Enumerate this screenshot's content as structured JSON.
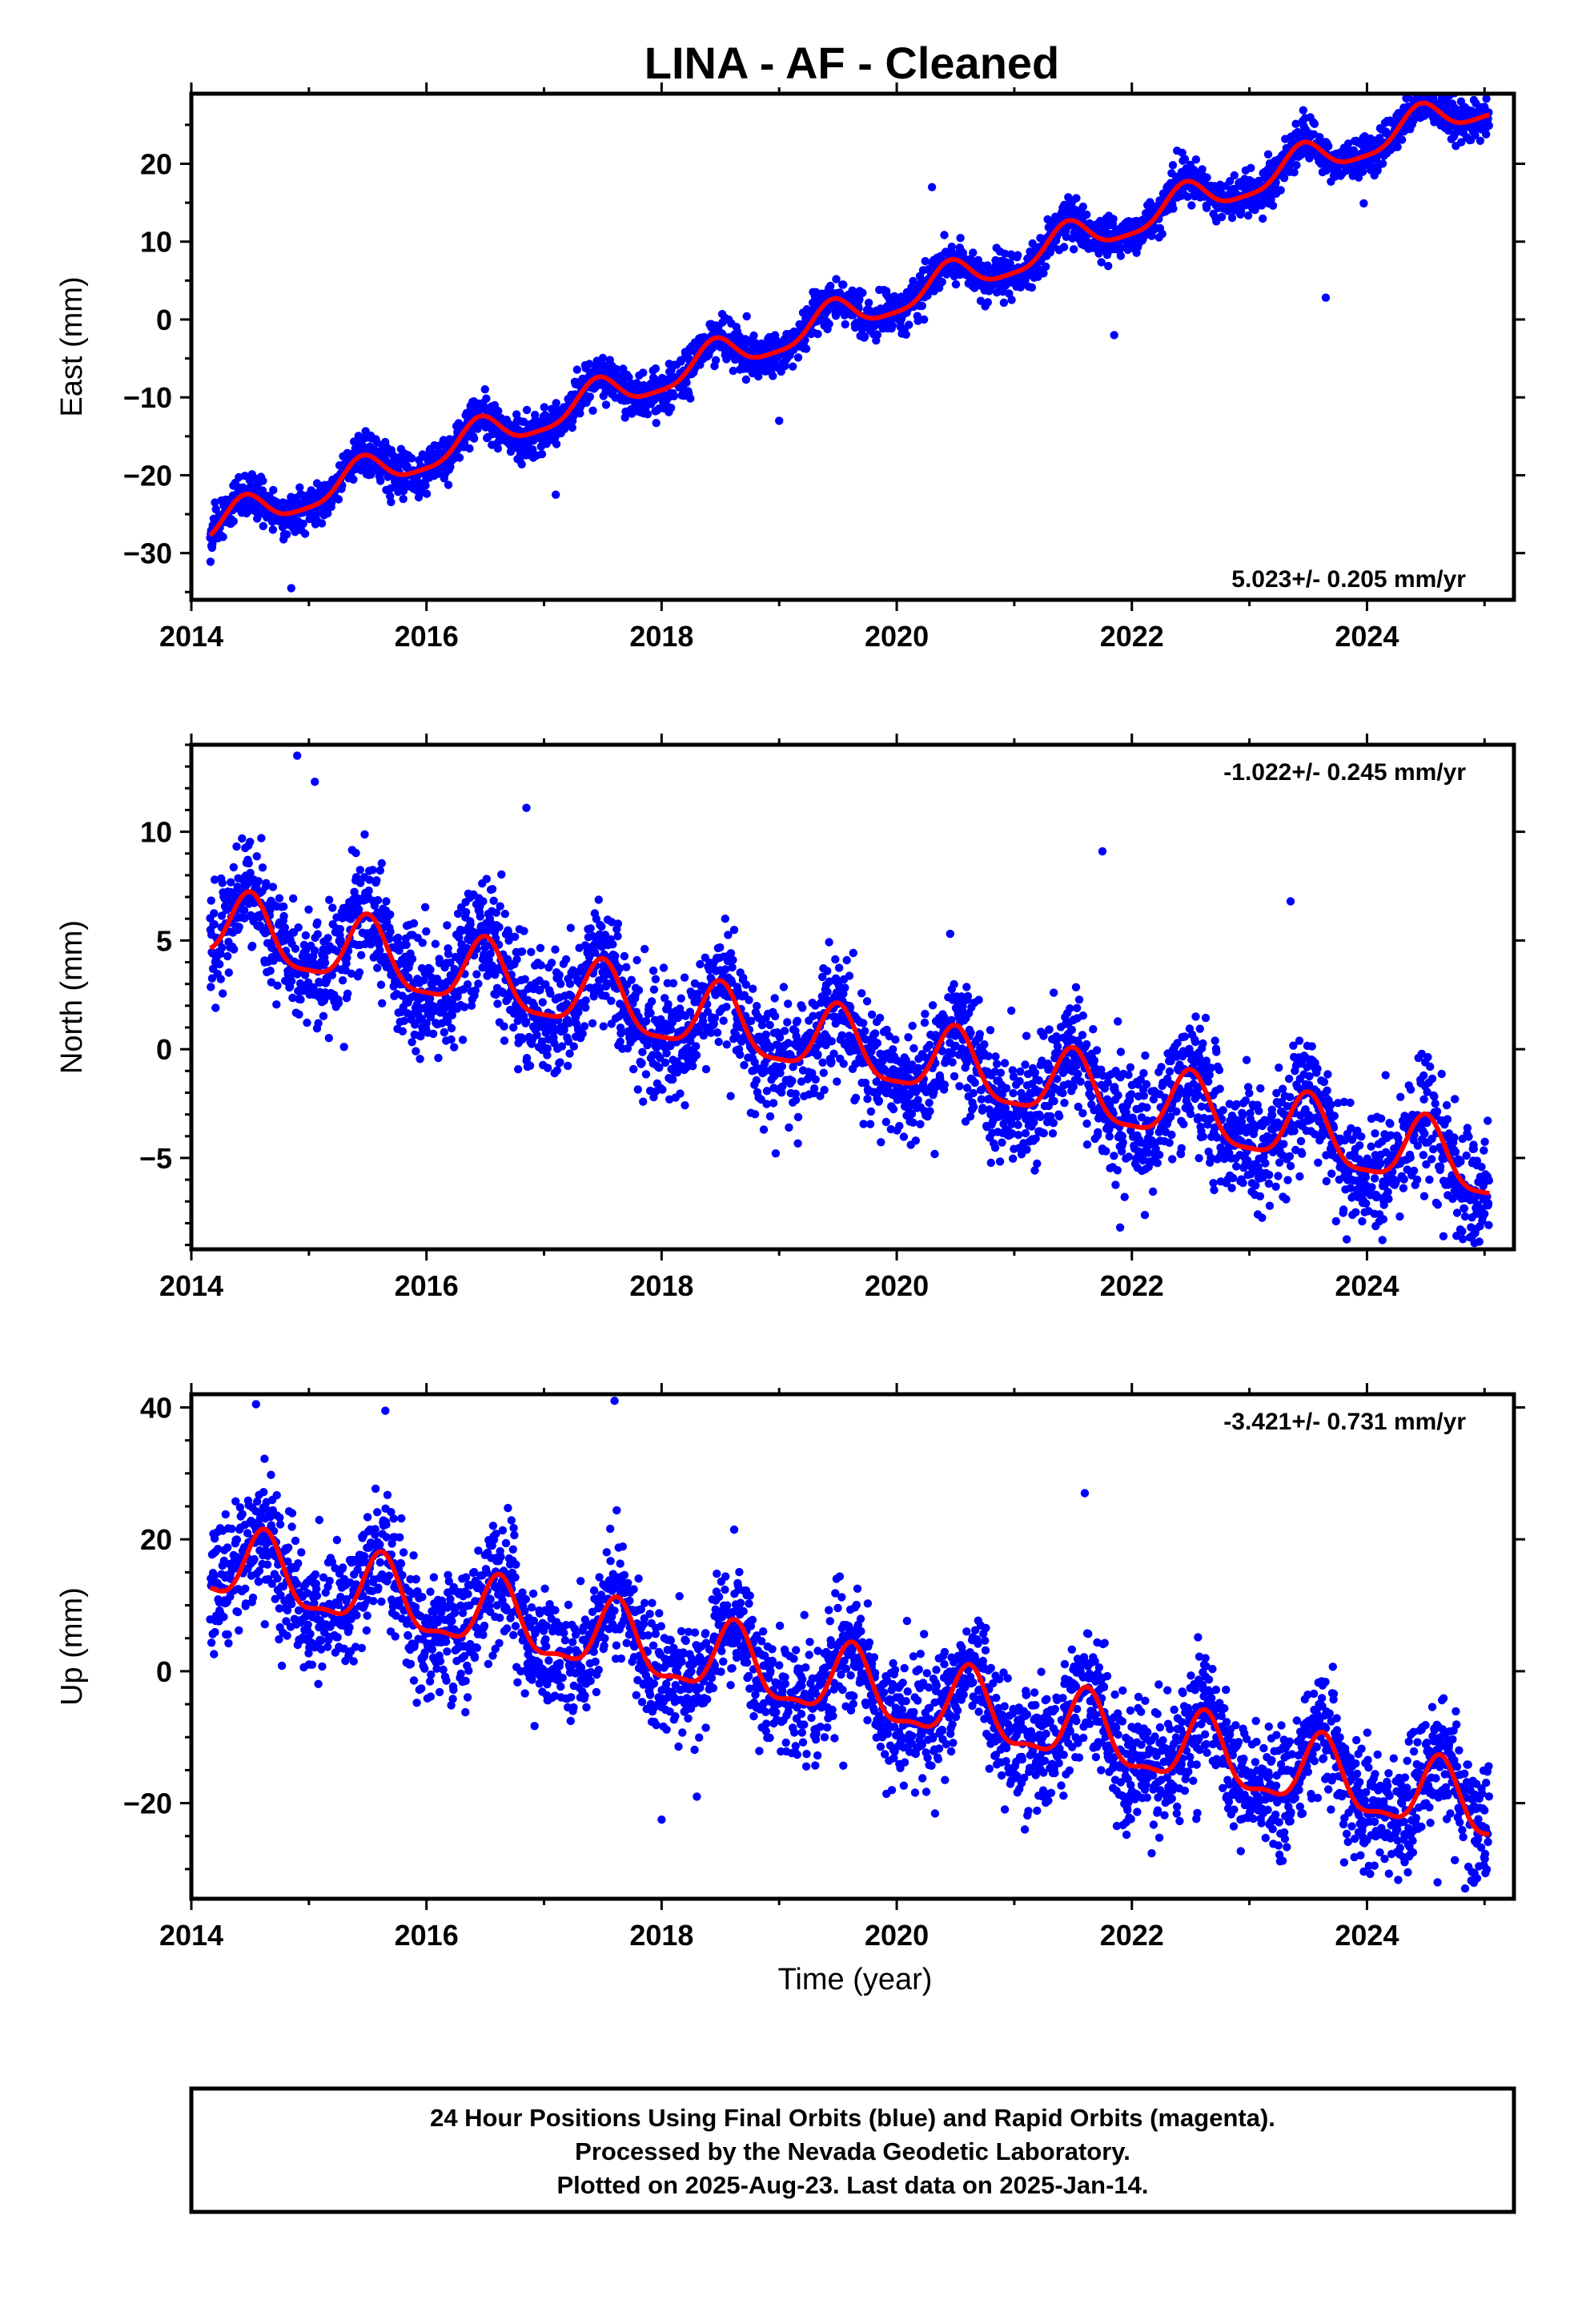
{
  "chart_data": {
    "title": "LINA  - AF - Cleaned",
    "type": "scatter",
    "x_tick_labels": [
      "2014",
      "2016",
      "2018",
      "2020",
      "2022",
      "2024"
    ],
    "xlabel": "Time (year)",
    "xlim": [
      2014,
      2025.25
    ],
    "panels": [
      {
        "key": "east",
        "ylabel": "East (mm)",
        "ylim": [
          -36,
          29
        ],
        "y_ticks": [
          -30,
          -20,
          -10,
          0,
          10,
          20
        ],
        "y_tick_labels": [
          "−30",
          "−20",
          "−10",
          "0",
          "10",
          "20"
        ],
        "rate_text": "5.023+/- 0.205 mm/yr",
        "rate_position": "bottom-right",
        "model": {
          "intercept": -26.5,
          "rate": 5.023,
          "annual_amp": 2.2,
          "annual_phase_year": 0.45,
          "semiannual_amp": 0.55
        },
        "series": [
          {
            "role": "daily positions (final orbits)",
            "color": "#0000ff",
            "noise_sd": 1.35,
            "outlier_points": [
              [
                2014.85,
                -34.5
              ],
              [
                2017.1,
                -22.5
              ],
              [
                2019.0,
                -13.0
              ],
              [
                2020.3,
                17.0
              ],
              [
                2021.85,
                -2.0
              ],
              [
                2023.65,
                2.8
              ],
              [
                2024.8,
                28.0
              ]
            ]
          },
          {
            "role": "fitted model",
            "color": "#ff0000"
          }
        ]
      },
      {
        "key": "north",
        "ylabel": "North (mm)",
        "ylim": [
          -9.2,
          14
        ],
        "y_ticks": [
          -5,
          0,
          5,
          10
        ],
        "y_tick_labels": [
          "−5",
          "0",
          "5",
          "10"
        ],
        "rate_text": "-1.022+/- 0.245 mm/yr",
        "rate_position": "top-right",
        "model": {
          "intercept": 5.6,
          "rate": -1.022,
          "annual_amp": 1.55,
          "annual_phase_year": 0.5,
          "semiannual_amp": 0.4
        },
        "series": [
          {
            "role": "daily positions (final orbits)",
            "color": "#0000ff",
            "noise_sd": 1.35,
            "outlier_points": [
              [
                2014.9,
                13.5
              ],
              [
                2015.05,
                12.3
              ],
              [
                2016.85,
                11.1
              ],
              [
                2021.75,
                9.1
              ],
              [
                2023.35,
                6.8
              ],
              [
                2021.9,
                -8.2
              ],
              [
                2024.65,
                -8.6
              ]
            ]
          },
          {
            "role": "fitted model",
            "color": "#ff0000"
          }
        ]
      },
      {
        "key": "up",
        "ylabel": "Up (mm)",
        "ylim": [
          -34.5,
          42
        ],
        "y_ticks": [
          -20,
          0,
          20,
          40
        ],
        "y_tick_labels": [
          "−20",
          "0",
          "20",
          "40"
        ],
        "rate_text": "-3.421+/- 0.731 mm/yr",
        "rate_position": "top-right",
        "model": {
          "intercept": 16.0,
          "rate": -3.421,
          "annual_amp": 5.2,
          "annual_phase_year": 0.62,
          "semiannual_amp": 1.8
        },
        "series": [
          {
            "role": "daily positions (final orbits)",
            "color": "#0000ff",
            "noise_sd": 4.6,
            "outlier_points": [
              [
                2014.55,
                40.5
              ],
              [
                2015.65,
                39.5
              ],
              [
                2017.6,
                41.0
              ],
              [
                2018.0,
                -22.5
              ],
              [
                2018.3,
                -19.0
              ],
              [
                2021.6,
                27.0
              ],
              [
                2024.6,
                -32.0
              ]
            ]
          },
          {
            "role": "fitted model",
            "color": "#ff0000"
          }
        ]
      }
    ]
  },
  "footer": {
    "line1": "24 Hour Positions Using Final Orbits (blue) and Rapid Orbits (magenta).",
    "line2": "Processed by the Nevada Geodetic Laboratory.",
    "line3": "Plotted on 2025-Aug-23. Last data on 2025-Jan-14."
  },
  "colors": {
    "data_points": "#0000ff",
    "model_line": "#ff0000",
    "frame": "#000000",
    "background": "#ffffff"
  }
}
